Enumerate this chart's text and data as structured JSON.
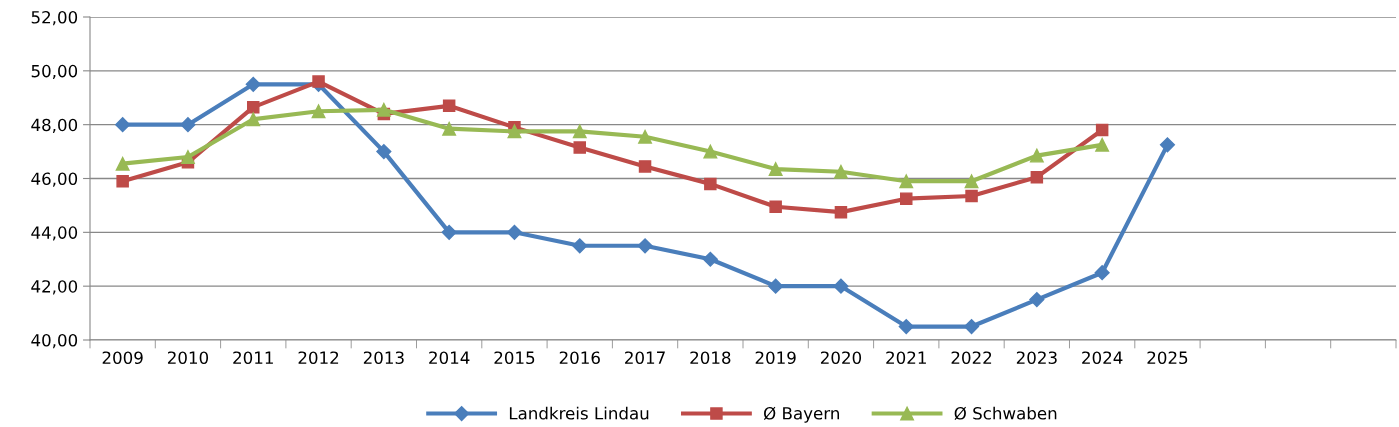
{
  "chart_data": {
    "type": "line",
    "categories": [
      "2009",
      "2010",
      "2011",
      "2012",
      "2013",
      "2014",
      "2015",
      "2016",
      "2017",
      "2018",
      "2019",
      "2020",
      "2021",
      "2022",
      "2023",
      "2024",
      "2025",
      null,
      null,
      null
    ],
    "series": [
      {
        "name": "Landkreis Lindau",
        "color": "#4a7ebb",
        "marker": "diamond",
        "values": [
          48.0,
          48.0,
          49.5,
          49.5,
          47.0,
          44.0,
          44.0,
          43.5,
          43.5,
          43.0,
          42.0,
          42.0,
          40.5,
          40.5,
          41.5,
          42.5,
          47.25,
          null,
          null,
          null
        ]
      },
      {
        "name": "Ø Bayern",
        "color": "#be4b48",
        "marker": "square",
        "values": [
          45.9,
          46.6,
          48.65,
          49.6,
          48.4,
          48.7,
          47.9,
          47.15,
          46.45,
          45.8,
          44.95,
          44.75,
          45.25,
          45.35,
          46.05,
          47.8,
          null,
          null,
          null,
          null
        ]
      },
      {
        "name": "Ø Schwaben",
        "color": "#98b954",
        "marker": "triangle",
        "values": [
          46.55,
          46.8,
          48.2,
          48.5,
          48.55,
          47.85,
          47.75,
          47.75,
          47.55,
          47.0,
          46.35,
          46.25,
          45.9,
          45.9,
          46.85,
          47.25,
          null,
          null,
          null,
          null
        ]
      }
    ],
    "ylim": [
      40,
      52
    ],
    "yticks": [
      {
        "value": 40,
        "label": "40,00"
      },
      {
        "value": 42,
        "label": "42,00"
      },
      {
        "value": 44,
        "label": "44,00"
      },
      {
        "value": 46,
        "label": "46,00"
      },
      {
        "value": 48,
        "label": "48,00"
      },
      {
        "value": 50,
        "label": "50,00"
      },
      {
        "value": 52,
        "label": "52,00"
      }
    ],
    "grid": "y",
    "legend": "bottom",
    "line_style": "solid"
  }
}
